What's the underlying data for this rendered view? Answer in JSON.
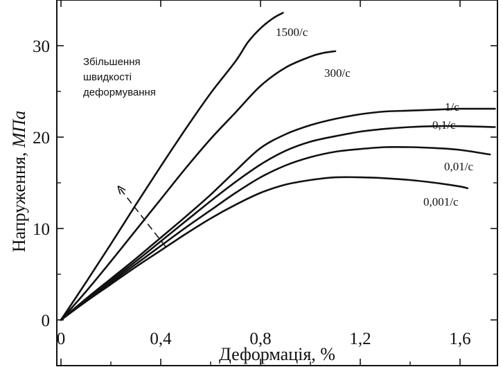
{
  "chart_data": {
    "type": "line",
    "xlabel": "Деформація, %",
    "ylabel_prefix": "Напруження, ",
    "ylabel_unit": "МПа",
    "xlim": [
      0,
      1.75
    ],
    "ylim": [
      0,
      35
    ],
    "x_ticks": [
      {
        "value": 0,
        "label": "0"
      },
      {
        "value": 0.4,
        "label": "0,4"
      },
      {
        "value": 0.8,
        "label": "0,8"
      },
      {
        "value": 1.2,
        "label": "1,2"
      },
      {
        "value": 1.6,
        "label": "1,6"
      }
    ],
    "y_ticks": [
      {
        "value": 0,
        "label": "0"
      },
      {
        "value": 10,
        "label": "10"
      },
      {
        "value": 20,
        "label": "20"
      },
      {
        "value": 30,
        "label": "30"
      }
    ],
    "grid": false,
    "annotation": {
      "lines": [
        "Збільшення",
        "швидкості",
        "деформування"
      ],
      "arrow_from": [
        0.42,
        8.0
      ],
      "arrow_to": [
        0.23,
        14.6
      ]
    },
    "series": [
      {
        "name": "1500/c",
        "x": [
          0,
          0.1,
          0.2,
          0.3,
          0.4,
          0.5,
          0.6,
          0.7,
          0.75,
          0.8,
          0.85,
          0.89
        ],
        "y": [
          0,
          4.1,
          8.3,
          12.6,
          16.8,
          20.9,
          24.8,
          28.3,
          30.4,
          31.9,
          33.0,
          33.6
        ]
      },
      {
        "name": "300/c",
        "x": [
          0,
          0.1,
          0.2,
          0.3,
          0.4,
          0.5,
          0.6,
          0.7,
          0.8,
          0.9,
          1.0,
          1.05,
          1.1
        ],
        "y": [
          0,
          3.1,
          6.4,
          9.8,
          13.2,
          16.6,
          19.8,
          22.7,
          25.6,
          27.6,
          28.8,
          29.2,
          29.4
        ]
      },
      {
        "name": "1/c",
        "x": [
          0,
          0.1,
          0.2,
          0.3,
          0.4,
          0.5,
          0.6,
          0.7,
          0.8,
          0.9,
          1.0,
          1.1,
          1.2,
          1.3,
          1.4,
          1.5,
          1.6,
          1.74
        ],
        "y": [
          0,
          2.3,
          4.5,
          6.7,
          9.0,
          11.3,
          13.7,
          16.3,
          18.8,
          20.3,
          21.3,
          22.0,
          22.5,
          22.8,
          22.9,
          23.0,
          23.1,
          23.1
        ]
      },
      {
        "name": "0,1/c",
        "x": [
          0,
          0.1,
          0.2,
          0.3,
          0.4,
          0.5,
          0.6,
          0.7,
          0.8,
          0.9,
          1.0,
          1.1,
          1.2,
          1.3,
          1.4,
          1.5,
          1.6,
          1.74
        ],
        "y": [
          0,
          2.2,
          4.3,
          6.4,
          8.6,
          10.8,
          13.0,
          15.1,
          17.0,
          18.5,
          19.5,
          20.1,
          20.6,
          20.9,
          21.1,
          21.2,
          21.2,
          21.1
        ]
      },
      {
        "name": "0,01/c",
        "x": [
          0,
          0.1,
          0.2,
          0.3,
          0.4,
          0.5,
          0.6,
          0.7,
          0.8,
          0.9,
          1.0,
          1.1,
          1.2,
          1.3,
          1.4,
          1.5,
          1.6,
          1.72
        ],
        "y": [
          0,
          2.1,
          4.1,
          6.1,
          8.1,
          10.1,
          12.0,
          13.9,
          15.6,
          16.9,
          17.8,
          18.4,
          18.7,
          18.9,
          18.9,
          18.8,
          18.6,
          18.1
        ]
      },
      {
        "name": "0,001/c",
        "x": [
          0,
          0.1,
          0.2,
          0.3,
          0.4,
          0.5,
          0.6,
          0.7,
          0.8,
          0.9,
          1.0,
          1.1,
          1.2,
          1.3,
          1.4,
          1.5,
          1.6,
          1.63
        ],
        "y": [
          0,
          2.0,
          3.9,
          5.8,
          7.6,
          9.4,
          11.1,
          12.6,
          13.9,
          14.8,
          15.3,
          15.6,
          15.6,
          15.5,
          15.3,
          15.0,
          14.6,
          14.4
        ]
      }
    ]
  }
}
